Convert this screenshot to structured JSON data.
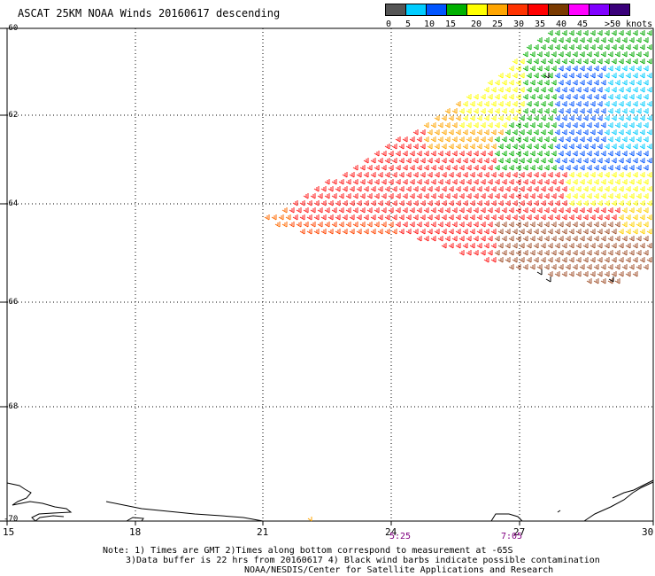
{
  "title": "ASCAT 25KM NOAA Winds 20160617 descending",
  "legend": {
    "colors": [
      "#666666",
      "#00aaff",
      "#0077ff",
      "#00aa00",
      "#ffff00",
      "#ffa500",
      "#ff4500",
      "#ff0000",
      "#8b4513",
      "#ff00ff",
      "#8000ff",
      "#000000"
    ],
    "labels": [
      "0",
      "5",
      "10",
      "15",
      "20",
      "25",
      "30",
      "35",
      "40",
      "45",
      ">50 knots"
    ]
  },
  "axes": {
    "lat_labels": [
      "-60",
      "-62",
      "-64",
      "-66",
      "-68",
      "-70"
    ],
    "lon_labels": [
      "15",
      "18",
      "21",
      "24",
      "27",
      "30"
    ]
  },
  "pass_times": [
    "5:25",
    "7:05"
  ],
  "notes": [
    "Note: 1) Times are GMT 2)Times along bottom correspond to measurement at -65S",
    "3)Data buffer is 22 hrs from 20160617 4) Black wind barbs indicate possible contamination",
    "NOAA/NESDIS/Center for Satellite Applications and Research"
  ]
}
